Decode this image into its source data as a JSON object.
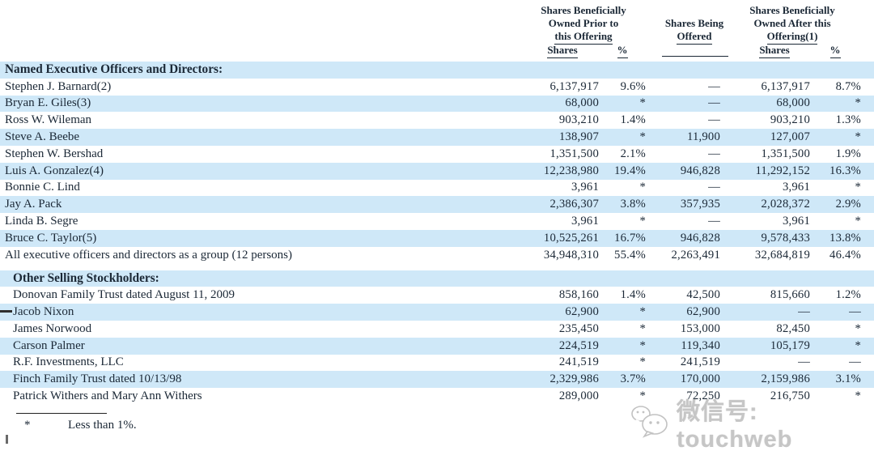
{
  "colors": {
    "row_band": "#cfe8f8",
    "ink": "#1b2836",
    "watermark_gray": "#c6c6c6"
  },
  "header": {
    "group1_line1": "Shares Beneficially",
    "group1_line2": "Owned Prior to",
    "group1_line3": "this Offering",
    "group2_line1": "Shares Being",
    "group2_line2": "Offered",
    "group3_line1": "Shares Beneficially",
    "group3_line2": "Owned After this",
    "group3_line3": "Offering(1)",
    "sub_shares1": "Shares",
    "sub_pct1": "%",
    "sub_shares2": "Shares",
    "sub_pct2": "%"
  },
  "sections": [
    {
      "title": "Named Executive Officers and Directors:",
      "rows": [
        {
          "name": "Stephen J. Barnard(2)",
          "shares_prior": "6,137,917",
          "pct_prior": "9.6%",
          "offered": "—",
          "shares_after": "6,137,917",
          "pct_after": "8.7%"
        },
        {
          "name": "Bryan E. Giles(3)",
          "shares_prior": "68,000",
          "pct_prior": "*",
          "offered": "—",
          "shares_after": "68,000",
          "pct_after": "*"
        },
        {
          "name": "Ross W. Wileman",
          "shares_prior": "903,210",
          "pct_prior": "1.4%",
          "offered": "—",
          "shares_after": "903,210",
          "pct_after": "1.3%"
        },
        {
          "name": "Steve A. Beebe",
          "shares_prior": "138,907",
          "pct_prior": "*",
          "offered": "11,900",
          "shares_after": "127,007",
          "pct_after": "*"
        },
        {
          "name": "Stephen W. Bershad",
          "shares_prior": "1,351,500",
          "pct_prior": "2.1%",
          "offered": "—",
          "shares_after": "1,351,500",
          "pct_after": "1.9%"
        },
        {
          "name": "Luis A. Gonzalez(4)",
          "shares_prior": "12,238,980",
          "pct_prior": "19.4%",
          "offered": "946,828",
          "shares_after": "11,292,152",
          "pct_after": "16.3%"
        },
        {
          "name": "Bonnie C. Lind",
          "shares_prior": "3,961",
          "pct_prior": "*",
          "offered": "—",
          "shares_after": "3,961",
          "pct_after": "*"
        },
        {
          "name": "Jay A. Pack",
          "shares_prior": "2,386,307",
          "pct_prior": "3.8%",
          "offered": "357,935",
          "shares_after": "2,028,372",
          "pct_after": "2.9%"
        },
        {
          "name": "Linda B. Segre",
          "shares_prior": "3,961",
          "pct_prior": "*",
          "offered": "—",
          "shares_after": "3,961",
          "pct_after": "*"
        },
        {
          "name": "Bruce C. Taylor(5)",
          "shares_prior": "10,525,261",
          "pct_prior": "16.7%",
          "offered": "946,828",
          "shares_after": "9,578,433",
          "pct_after": "13.8%"
        },
        {
          "name": "All executive officers and directors as a group (12 persons)",
          "shares_prior": "34,948,310",
          "pct_prior": "55.4%",
          "offered": "2,263,491",
          "shares_after": "32,684,819",
          "pct_after": "46.4%"
        }
      ]
    },
    {
      "title": "Other Selling Stockholders:",
      "rows": [
        {
          "name": "Donovan Family Trust dated August 11, 2009",
          "shares_prior": "858,160",
          "pct_prior": "1.4%",
          "offered": "42,500",
          "shares_after": "815,660",
          "pct_after": "1.2%"
        },
        {
          "name": "Jacob Nixon",
          "shares_prior": "62,900",
          "pct_prior": "*",
          "offered": "62,900",
          "shares_after": "—",
          "pct_after": "—"
        },
        {
          "name": "James Norwood",
          "shares_prior": "235,450",
          "pct_prior": "*",
          "offered": "153,000",
          "shares_after": "82,450",
          "pct_after": "*"
        },
        {
          "name": "Carson Palmer",
          "shares_prior": "224,519",
          "pct_prior": "*",
          "offered": "119,340",
          "shares_after": "105,179",
          "pct_after": "*"
        },
        {
          "name": "R.F. Investments, LLC",
          "shares_prior": "241,519",
          "pct_prior": "*",
          "offered": "241,519",
          "shares_after": "—",
          "pct_after": "—"
        },
        {
          "name": "Finch Family Trust dated 10/13/98",
          "shares_prior": "2,329,986",
          "pct_prior": "3.7%",
          "offered": "170,000",
          "shares_after": "2,159,986",
          "pct_after": "3.1%"
        },
        {
          "name": "Patrick Withers and Mary Ann Withers",
          "shares_prior": "289,000",
          "pct_prior": "*",
          "offered": "72,250",
          "shares_after": "216,750",
          "pct_after": "*"
        }
      ]
    }
  ],
  "footnote": {
    "symbol": "*",
    "text": "Less than 1%."
  },
  "watermark": {
    "icon": "wechat-icon",
    "text": "微信号: touchweb"
  }
}
